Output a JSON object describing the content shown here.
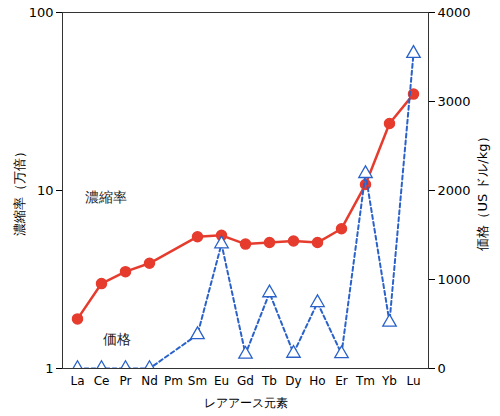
{
  "chart_data": {
    "type": "line",
    "x_label": "レアアース元素",
    "y_label": "濃縮率（万倍）",
    "y2_label": "価格（US ドル/kg）",
    "categories": [
      "La",
      "Ce",
      "Pr",
      "Nd",
      "Pm",
      "Sm",
      "Eu",
      "Gd",
      "Tb",
      "Dy",
      "Ho",
      "Er",
      "Tm",
      "Yb",
      "Lu"
    ],
    "log": "y",
    "ylim": [
      1,
      100
    ],
    "yticks": [
      1,
      10,
      100
    ],
    "y2lim": [
      0,
      4000
    ],
    "y2ticks": [
      0,
      1000,
      2000,
      3000,
      4000
    ],
    "series": [
      {
        "name": "濃縮率",
        "color": "#e63c2e",
        "marker": "circle",
        "line_style": "solid",
        "values": [
          1.9,
          3.0,
          3.5,
          3.9,
          null,
          5.5,
          5.6,
          5.0,
          5.1,
          5.2,
          5.1,
          6.1,
          10.8,
          23.8,
          34.8
        ]
      },
      {
        "name": "価格",
        "color": "#2a62c9",
        "marker": "triangle",
        "line_style": "dashed",
        "axis": "y2",
        "values": [
          0,
          0,
          0,
          0,
          null,
          380,
          1400,
          160,
          850,
          170,
          740,
          165,
          2190,
          520,
          3540
        ]
      }
    ]
  }
}
